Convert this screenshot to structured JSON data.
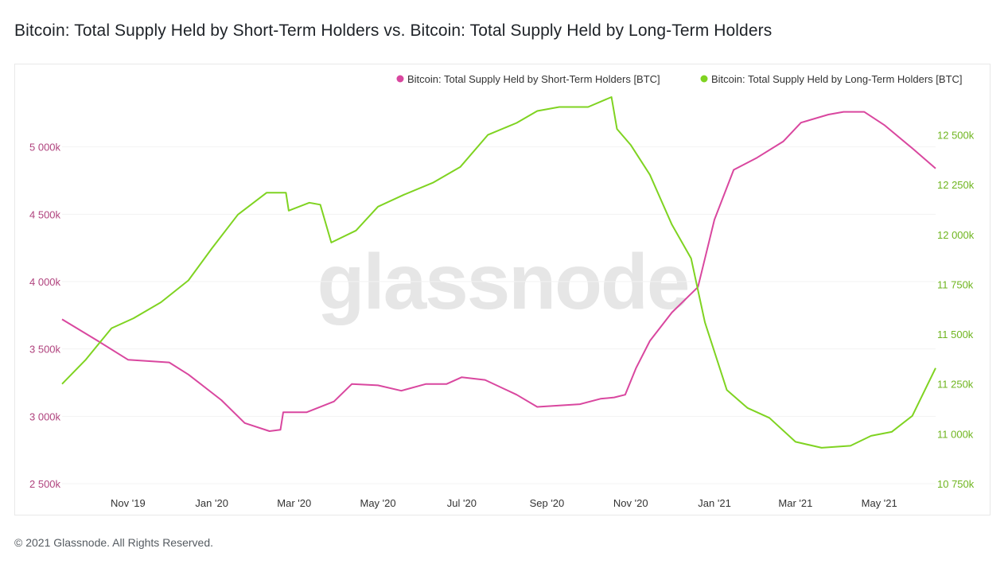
{
  "title": "Bitcoin: Total Supply Held by Short-Term Holders vs. Bitcoin: Total Supply Held by Long-Term Holders",
  "footer": "© 2021 Glassnode. All Rights Reserved.",
  "watermark": "glassnode",
  "colors": {
    "sth": "#d9479f",
    "lth": "#7fd321",
    "left_axis_text": "#b0437e",
    "right_axis_text": "#6fb51f"
  },
  "chart_data": {
    "type": "line",
    "x_ticks": [
      "Nov '19",
      "Jan '20",
      "Mar '20",
      "May '20",
      "Jul '20",
      "Sep '20",
      "Nov '20",
      "Jan '21",
      "Mar '21",
      "May '21"
    ],
    "x_range": [
      "2019-09-14",
      "2021-06-11"
    ],
    "y_left": {
      "ticks": [
        "2 500k",
        "3 000k",
        "3 500k",
        "4 000k",
        "4 500k",
        "5 000k"
      ],
      "range": [
        2500,
        5500
      ]
    },
    "y_right": {
      "ticks": [
        "10 750k",
        "11 000k",
        "11 250k",
        "11 500k",
        "11 750k",
        "12 000k",
        "12 250k",
        "12 500k"
      ],
      "range": [
        10750,
        12650
      ]
    },
    "legend_position": "top-right",
    "series": [
      {
        "name": "Bitcoin: Total Supply Held by Short-Term Holders [BTC]",
        "axis": "left",
        "color": "#d9479f",
        "points": [
          [
            "2019-09-14",
            3720
          ],
          [
            "2019-10-10",
            3560
          ],
          [
            "2019-11-01",
            3420
          ],
          [
            "2019-12-01",
            3400
          ],
          [
            "2019-12-15",
            3310
          ],
          [
            "2020-01-08",
            3120
          ],
          [
            "2020-01-25",
            2950
          ],
          [
            "2020-02-12",
            2890
          ],
          [
            "2020-02-20",
            2900
          ],
          [
            "2020-02-22",
            3030
          ],
          [
            "2020-03-10",
            3030
          ],
          [
            "2020-03-30",
            3110
          ],
          [
            "2020-04-12",
            3240
          ],
          [
            "2020-05-01",
            3230
          ],
          [
            "2020-05-18",
            3190
          ],
          [
            "2020-06-05",
            3240
          ],
          [
            "2020-06-20",
            3240
          ],
          [
            "2020-07-01",
            3290
          ],
          [
            "2020-07-18",
            3270
          ],
          [
            "2020-08-10",
            3160
          ],
          [
            "2020-08-25",
            3070
          ],
          [
            "2020-09-25",
            3090
          ],
          [
            "2020-10-10",
            3130
          ],
          [
            "2020-10-20",
            3140
          ],
          [
            "2020-10-28",
            3160
          ],
          [
            "2020-11-05",
            3360
          ],
          [
            "2020-11-15",
            3560
          ],
          [
            "2020-12-01",
            3770
          ],
          [
            "2020-12-20",
            3960
          ],
          [
            "2021-01-01",
            4460
          ],
          [
            "2021-01-15",
            4830
          ],
          [
            "2021-02-01",
            4920
          ],
          [
            "2021-02-20",
            5040
          ],
          [
            "2021-03-05",
            5180
          ],
          [
            "2021-03-25",
            5240
          ],
          [
            "2021-04-05",
            5260
          ],
          [
            "2021-04-20",
            5260
          ],
          [
            "2021-05-05",
            5160
          ],
          [
            "2021-05-25",
            4990
          ],
          [
            "2021-06-11",
            4840
          ]
        ]
      },
      {
        "name": "Bitcoin: Total Supply Held by Long-Term Holders [BTC]",
        "axis": "right",
        "color": "#7fd321",
        "points": [
          [
            "2019-09-14",
            11250
          ],
          [
            "2019-10-01",
            11370
          ],
          [
            "2019-10-20",
            11530
          ],
          [
            "2019-11-05",
            11580
          ],
          [
            "2019-11-25",
            11660
          ],
          [
            "2019-12-15",
            11770
          ],
          [
            "2020-01-01",
            11930
          ],
          [
            "2020-01-20",
            12100
          ],
          [
            "2020-02-10",
            12210
          ],
          [
            "2020-02-24",
            12210
          ],
          [
            "2020-02-26",
            12120
          ],
          [
            "2020-03-12",
            12160
          ],
          [
            "2020-03-20",
            12150
          ],
          [
            "2020-03-28",
            11960
          ],
          [
            "2020-04-15",
            12020
          ],
          [
            "2020-05-01",
            12140
          ],
          [
            "2020-05-20",
            12200
          ],
          [
            "2020-06-10",
            12260
          ],
          [
            "2020-06-30",
            12340
          ],
          [
            "2020-07-20",
            12500
          ],
          [
            "2020-08-10",
            12560
          ],
          [
            "2020-08-25",
            12620
          ],
          [
            "2020-09-10",
            12640
          ],
          [
            "2020-10-01",
            12640
          ],
          [
            "2020-10-18",
            12690
          ],
          [
            "2020-10-22",
            12530
          ],
          [
            "2020-11-01",
            12450
          ],
          [
            "2020-11-15",
            12300
          ],
          [
            "2020-12-01",
            12050
          ],
          [
            "2020-12-15",
            11880
          ],
          [
            "2020-12-25",
            11560
          ],
          [
            "2021-01-10",
            11220
          ],
          [
            "2021-01-25",
            11130
          ],
          [
            "2021-02-10",
            11080
          ],
          [
            "2021-03-01",
            10960
          ],
          [
            "2021-03-20",
            10930
          ],
          [
            "2021-04-10",
            10940
          ],
          [
            "2021-04-25",
            10990
          ],
          [
            "2021-05-10",
            11010
          ],
          [
            "2021-05-25",
            11090
          ],
          [
            "2021-06-11",
            11330
          ]
        ]
      }
    ]
  }
}
